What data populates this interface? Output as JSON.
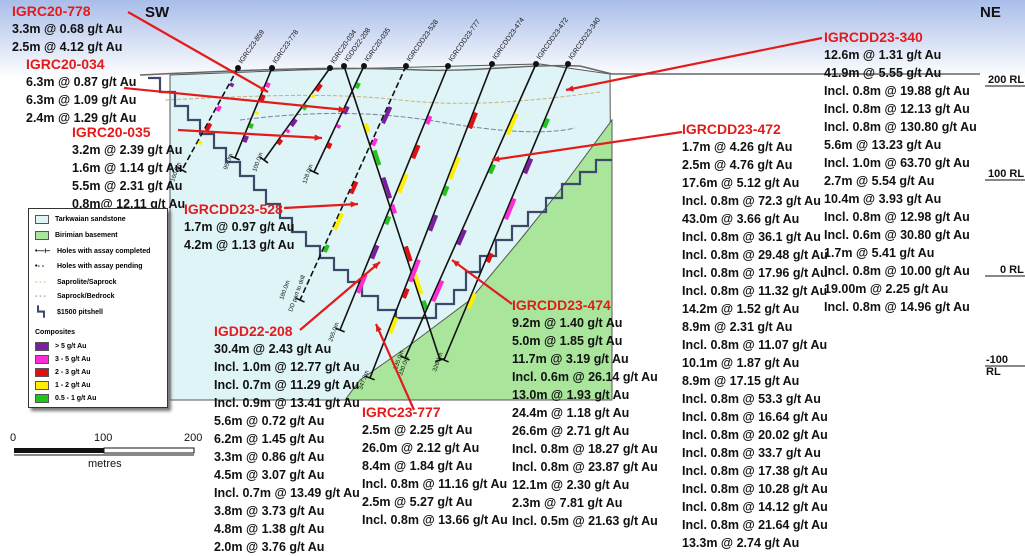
{
  "orientation": {
    "left": "SW",
    "right": "NE"
  },
  "rl_labels": [
    "200 RL",
    "100 RL",
    "0 RL",
    "-100 RL"
  ],
  "hole_labels": [
    "IGRC23-859",
    "IGRC23-778",
    "IGRC20-034",
    "IGDD22-208",
    "IGRC20-035",
    "IGRCDD23-528",
    "IGRCDD23-777",
    "IGRCDD23-474",
    "IGRCDD23-472",
    "IGRCDD23-340"
  ],
  "depth_labels": [
    "160.0m",
    "95.0m",
    "100.0m",
    "128.0m",
    "DD part to drill",
    "180.0m",
    "265.0m",
    "347.8m",
    "335.0m",
    "330.0m",
    "326.1m"
  ],
  "callouts": [
    {
      "id": "igrc20-778",
      "title": "IGRC20-778",
      "lines": [
        "3.3m @ 0.68 g/t Au",
        "2.5m @ 4.12 g/t Au"
      ]
    },
    {
      "id": "igrc20-034",
      "title": "IGRC20-034",
      "lines": [
        "6.3m @ 0.87 g/t Au",
        "6.3m @ 1.09 g/t Au",
        "2.4m @ 1.29 g/t Au"
      ]
    },
    {
      "id": "igrc20-035",
      "title": "IGRC20-035",
      "lines": [
        "3.2m @ 2.39 g/t Au",
        "1.6m @ 1.14 g/t Au",
        "5.5m @ 2.31 g/t Au",
        "0.8m@ 12.11 g/t Au"
      ]
    },
    {
      "id": "igrcdd23-528",
      "title": "IGRCDD23-528",
      "lines": [
        "1.7m @ 0.97 g/t Au",
        "4.2m @ 1.13 g/t Au"
      ]
    },
    {
      "id": "igdd22-208",
      "title": "IGDD22-208",
      "lines": [
        "30.4m @ 2.43 g/t Au",
        "Incl. 1.0m @ 12.77 g/t Au",
        "Incl. 0.7m @ 11.29 g/t Au",
        "Incl. 0.9m @ 13.41 g/t Au",
        "5.6m @ 0.72 g/t Au",
        "6.2m @ 1.45 g/t Au",
        "3.3m @ 0.86 g/t Au",
        "4.5m @ 3.07 g/t Au",
        "Incl. 0.7m @ 13.49 g/t Au",
        "3.8m @ 3.73 g/t Au",
        "4.8m @ 1.38 g/t Au",
        "2.0m @ 3.76 g/t Au"
      ]
    },
    {
      "id": "igrc23-777",
      "title": "IGRC23-777",
      "lines": [
        "2.5m @ 2.25 g/t Au",
        "26.0m @ 2.12 g/t Au",
        "8.4m @ 1.84 g/t Au",
        "Incl. 0.8m @ 11.16 g/t Au",
        "2.5m @ 5.27 g/t Au",
        "Incl. 0.8m @ 13.66 g/t Au"
      ]
    },
    {
      "id": "igrcdd23-474",
      "title": "IGRCDD23-474",
      "lines": [
        "9.2m @ 1.40 g/t Au",
        "5.0m @ 1.85 g/t Au",
        "11.7m @ 3.19 g/t Au",
        "Incl. 0.6m @ 26.14 g/t Au",
        "13.0m @ 1.93 g/t Au",
        "24.4m @ 1.18 g/t Au",
        "26.6m @ 2.71 g/t Au",
        "Incl. 0.8m @ 18.27 g/t Au",
        "Incl. 0.8m @ 23.87 g/t Au",
        "12.1m @ 2.30 g/t Au",
        "2.3m @ 7.81 g/t Au",
        "Incl. 0.5m @ 21.63 g/t Au"
      ]
    },
    {
      "id": "igrcdd23-472",
      "title": "IGRCDD23-472",
      "lines": [
        "1.7m @ 4.26 g/t Au",
        "2.5m @ 4.76 g/t Au",
        "17.6m @ 5.12 g/t Au",
        "Incl. 0.8m @ 72.3 g/t Au",
        "43.0m @ 3.66 g/t Au",
        "Incl. 0.8m @ 36.1 g/t Au",
        "Incl. 0.8m @ 29.48 g/t Au",
        "Incl. 0.8m @ 17.96 g/t Au",
        "Incl. 0.8m @ 11.32 g/t Au",
        "14.2m @ 1.52 g/t Au",
        "8.9m @ 2.31 g/t Au",
        "Incl. 0.8m @ 11.07 g/t Au",
        "10.1m @ 1.87 g/t Au",
        "8.9m @ 17.15 g/t Au",
        "Incl. 0.8m @ 53.3 g/t Au",
        "Incl. 0.8m @ 16.64 g/t Au",
        "Incl. 0.8m @ 20.02 g/t Au",
        "Incl. 0.8m @ 33.7 g/t Au",
        "Incl. 0.8m @ 17.38 g/t Au",
        "Incl. 0.8m @ 10.28 g/t Au",
        "Incl. 0.8m @ 14.12 g/t Au",
        "Incl. 0.8m @ 21.64 g/t Au",
        "13.3m @ 2.74 g/t Au"
      ]
    },
    {
      "id": "igrcdd23-340",
      "title": "IGRCDD23-340",
      "lines": [
        "12.6m @ 1.31 g/t Au",
        "41.9m @ 5.55 g/t Au",
        "Incl. 0.8m @ 19.88 g/t Au",
        "Incl. 0.8m @ 12.13 g/t Au",
        "Incl. 0.8m @ 130.80 g/t Au",
        "5.6m @ 13.23 g/t Au",
        "Incl. 1.0m @ 63.70 g/t Au",
        "2.7m @ 5.54 g/t Au",
        "10.4m @ 3.93 g/t Au",
        "Incl. 0.8m @ 12.98 g/t Au",
        "Incl. 0.6m @ 30.80 g/t Au",
        "1.7m @ 5.41 g/t Au",
        "Incl. 0.8m @ 10.00 g/t Au",
        "19.00m @ 2.25 g/t Au",
        "Incl. 0.8m @ 14.96 g/t Au"
      ]
    }
  ],
  "legend": {
    "units": [
      {
        "label": "Tarkwaian sandstone",
        "color": "#dff4f6"
      },
      {
        "label": "Birimian basement",
        "color": "#a9e59b"
      }
    ],
    "symbols": [
      "Holes with assay completed",
      "Holes with assay pending",
      "Saprolite/Saprock",
      "Saprock/Bedrock",
      "$1500 pitshell"
    ],
    "composites_title": "Composites",
    "composites": [
      {
        "label": "> 5 g/t Au",
        "color": "#7a1fa0"
      },
      {
        "label": "3 - 5 g/t Au",
        "color": "#ff2bd6"
      },
      {
        "label": "2 - 3 g/t Au",
        "color": "#e01010"
      },
      {
        "label": "1 - 2 g/t Au",
        "color": "#ffee00"
      },
      {
        "label": "0.5 - 1 g/t Au",
        "color": "#22c41c"
      }
    ]
  },
  "scale_bar": {
    "ticks": [
      "0",
      "100",
      "200"
    ],
    "unit": "metres"
  },
  "colors": {
    "sandstone": "#dff4f6",
    "basement": "#a9e59b",
    "callout": "#e41b1b",
    "pitshell": "#3b4a6b",
    "sky_top": "#b8c8ec"
  }
}
